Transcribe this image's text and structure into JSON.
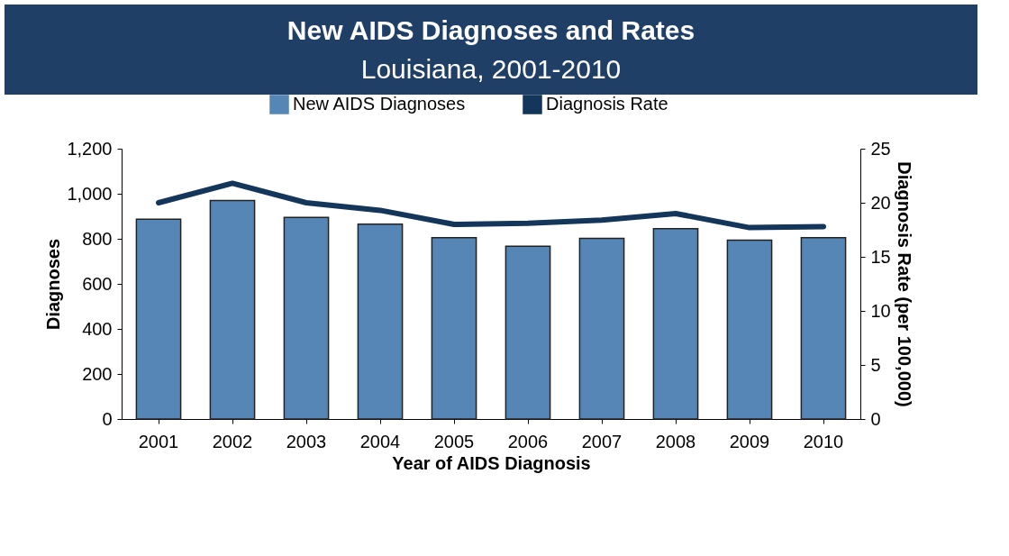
{
  "chart_data": {
    "type": "bar",
    "title": "New AIDS Diagnoses and Rates",
    "subtitle": "Louisiana, 2001-2010",
    "xlabel": "Year of AIDS Diagnosis",
    "ylabel": "Diagnoses",
    "y2label": "Diagnosis Rate (per 100,000)",
    "categories": [
      "2001",
      "2002",
      "2003",
      "2004",
      "2005",
      "2006",
      "2007",
      "2008",
      "2009",
      "2010"
    ],
    "series": [
      {
        "name": "New AIDS Diagnoses",
        "color": "#5586b6",
        "values": [
          887,
          970,
          895,
          865,
          805,
          767,
          802,
          845,
          794,
          805
        ]
      },
      {
        "name": "Diagnosis Rate",
        "type": "line",
        "axis": "y2",
        "color": "#14365a",
        "values": [
          20.0,
          21.8,
          20.0,
          19.3,
          18.0,
          18.1,
          18.4,
          19.0,
          17.7,
          17.8
        ]
      }
    ],
    "ylim": [
      0,
      1200
    ],
    "yticks": [
      0,
      200,
      400,
      600,
      800,
      {
        "value": 1000,
        "label": "1,000"
      },
      {
        "value": 1200,
        "label": "1,200"
      }
    ],
    "y2lim": [
      0,
      25
    ],
    "y2ticks": [
      0,
      5,
      10,
      15,
      20,
      25
    ],
    "grid": false,
    "legend": "top",
    "marker": "none",
    "line_style": "solid"
  }
}
